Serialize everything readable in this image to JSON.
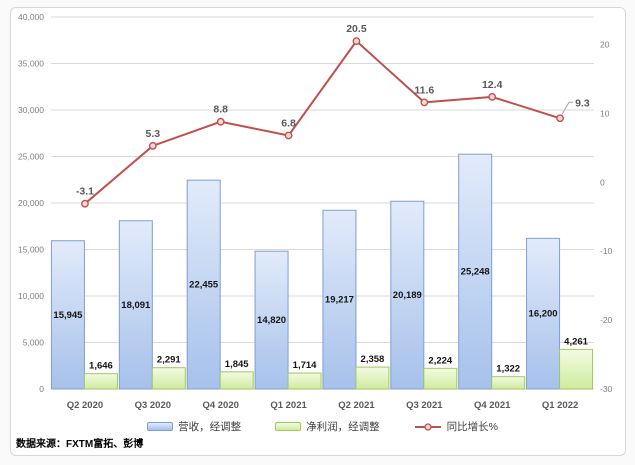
{
  "chart_data": {
    "type": "combo-bar-line",
    "title": "",
    "categories": [
      "Q2 2020",
      "Q3 2020",
      "Q4 2020",
      "Q1 2021",
      "Q2 2021",
      "Q3 2021",
      "Q4 2021",
      "Q1 2022"
    ],
    "series": [
      {
        "name": "营收，经调整",
        "kind": "bar",
        "axis": "left",
        "values": [
          15945,
          18091,
          22455,
          14820,
          19217,
          20189,
          25248,
          16200
        ],
        "value_labels": [
          "15,945",
          "18,091",
          "22,455",
          "14,820",
          "19,217",
          "20,189",
          "25,248",
          "16,200"
        ],
        "label_position": "inside-center",
        "fill_top": "#e2ebfa",
        "fill_bottom": "#a6c1eb",
        "border": "#7f9fd1"
      },
      {
        "name": "净利润，经调整",
        "kind": "bar",
        "axis": "left",
        "values": [
          1646,
          2291,
          1845,
          1714,
          2358,
          2224,
          1322,
          4261
        ],
        "value_labels": [
          "1,646",
          "2,291",
          "1,845",
          "1,714",
          "2,358",
          "2,224",
          "1,322",
          "4,261"
        ],
        "label_position": "outside-top",
        "fill_top": "#f3fbe2",
        "fill_bottom": "#cfeb9e",
        "border": "#9fc861"
      },
      {
        "name": "同比增长%",
        "kind": "line",
        "axis": "right",
        "values": [
          -3.1,
          5.3,
          8.8,
          6.8,
          20.5,
          11.6,
          12.4,
          9.3
        ],
        "value_labels": [
          "-3.1",
          "5.3",
          "8.8",
          "6.8",
          "20.5",
          "11.6",
          "12.4",
          "9.3"
        ],
        "color": "#c0504d",
        "marker_fill": "#f2dad8",
        "callout_last_label": true
      }
    ],
    "axes": {
      "left": {
        "min": 0,
        "max": 40000,
        "step": 5000,
        "tick_labels": [
          "0",
          "5,000",
          "10,000",
          "15,000",
          "20,000",
          "25,000",
          "30,000",
          "35,000",
          "40,000"
        ]
      },
      "right": {
        "min": -30,
        "max": 24,
        "tick_values": [
          20,
          10,
          0,
          -10,
          -20,
          -30
        ],
        "tick_labels": [
          "20",
          "10",
          "0",
          "-10",
          "-20",
          "-30"
        ]
      }
    },
    "gridlines": "horizontal",
    "legend": {
      "position": "bottom",
      "items": [
        "营收，经调整",
        "净利润，经调整",
        "同比增长%"
      ]
    },
    "source_note": "数据来源：FXTM富拓、彭博"
  }
}
